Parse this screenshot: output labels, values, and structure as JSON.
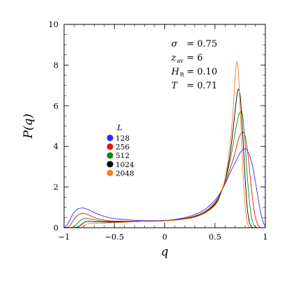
{
  "chart_data": {
    "type": "line",
    "xlabel": "q",
    "ylabel": "P(q)",
    "xlim": [
      -1,
      1
    ],
    "ylim": [
      0,
      10
    ],
    "xticks": [
      {
        "value": -1,
        "label": "−1"
      },
      {
        "value": -0.5,
        "label": "−0.5"
      },
      {
        "value": 0,
        "label": "0"
      },
      {
        "value": 0.5,
        "label": "0.5"
      },
      {
        "value": 1,
        "label": "1"
      }
    ],
    "yticks": [
      {
        "value": 0,
        "label": "0"
      },
      {
        "value": 2,
        "label": "2"
      },
      {
        "value": 4,
        "label": "4"
      },
      {
        "value": 6,
        "label": "6"
      },
      {
        "value": 8,
        "label": "8"
      },
      {
        "value": 10,
        "label": "10"
      }
    ],
    "grid": false,
    "legend": {
      "title": "L",
      "placement": "middle-left"
    },
    "annotations": [
      {
        "symbol": "σ",
        "sub": "",
        "value": "= 0.75"
      },
      {
        "symbol": "z",
        "sub": "av",
        "value": "= 6"
      },
      {
        "symbol": "H",
        "sub": "R",
        "value": "= 0.10"
      },
      {
        "symbol": "T",
        "sub": "",
        "value": "= 0.71"
      }
    ],
    "series": [
      {
        "name": "128",
        "color": "#2b2bff",
        "x": [
          -1.0,
          -0.98,
          -0.95,
          -0.92,
          -0.9,
          -0.87,
          -0.85,
          -0.82,
          -0.8,
          -0.78,
          -0.75,
          -0.7,
          -0.65,
          -0.6,
          -0.55,
          -0.5,
          -0.45,
          -0.4,
          -0.3,
          -0.2,
          -0.1,
          0.0,
          0.1,
          0.2,
          0.3,
          0.4,
          0.5,
          0.55,
          0.6,
          0.65,
          0.7,
          0.73,
          0.75,
          0.78,
          0.8,
          0.82,
          0.84,
          0.86,
          0.88,
          0.9,
          0.92,
          0.94,
          0.96,
          0.98,
          1.0
        ],
        "y": [
          0.0,
          0.08,
          0.3,
          0.6,
          0.75,
          0.9,
          0.95,
          0.97,
          0.96,
          0.93,
          0.87,
          0.75,
          0.64,
          0.56,
          0.49,
          0.45,
          0.42,
          0.4,
          0.37,
          0.35,
          0.35,
          0.36,
          0.41,
          0.5,
          0.65,
          0.9,
          1.35,
          1.7,
          2.15,
          2.7,
          3.2,
          3.5,
          3.7,
          3.85,
          3.9,
          3.8,
          3.6,
          3.3,
          2.85,
          2.3,
          1.7,
          1.1,
          0.6,
          0.25,
          0.05
        ]
      },
      {
        "name": "256",
        "color": "#ee1111",
        "x": [
          -1.0,
          -0.97,
          -0.94,
          -0.91,
          -0.88,
          -0.85,
          -0.82,
          -0.8,
          -0.77,
          -0.74,
          -0.7,
          -0.65,
          -0.6,
          -0.55,
          -0.5,
          -0.4,
          -0.3,
          -0.2,
          -0.1,
          0.0,
          0.1,
          0.2,
          0.3,
          0.4,
          0.5,
          0.55,
          0.6,
          0.65,
          0.7,
          0.72,
          0.74,
          0.76,
          0.78,
          0.8,
          0.82,
          0.84,
          0.86,
          0.88,
          0.9,
          0.92,
          0.94,
          0.96
        ],
        "y": [
          0.0,
          0.02,
          0.12,
          0.35,
          0.55,
          0.66,
          0.7,
          0.7,
          0.66,
          0.59,
          0.5,
          0.42,
          0.37,
          0.34,
          0.33,
          0.32,
          0.32,
          0.32,
          0.33,
          0.35,
          0.39,
          0.46,
          0.58,
          0.8,
          1.25,
          1.65,
          2.2,
          2.9,
          3.7,
          4.1,
          4.45,
          4.65,
          4.7,
          4.5,
          3.9,
          3.0,
          2.0,
          1.15,
          0.55,
          0.2,
          0.05,
          0.0
        ]
      },
      {
        "name": "512",
        "color": "#108a10",
        "x": [
          -1.0,
          -0.95,
          -0.9,
          -0.87,
          -0.84,
          -0.81,
          -0.78,
          -0.75,
          -0.7,
          -0.65,
          -0.6,
          -0.5,
          -0.4,
          -0.3,
          -0.2,
          -0.1,
          0.0,
          0.1,
          0.2,
          0.3,
          0.4,
          0.5,
          0.55,
          0.6,
          0.65,
          0.68,
          0.7,
          0.72,
          0.74,
          0.76,
          0.77,
          0.78,
          0.8,
          0.82,
          0.84,
          0.86,
          0.88,
          0.9,
          0.92
        ],
        "y": [
          0.0,
          0.0,
          0.06,
          0.2,
          0.36,
          0.44,
          0.46,
          0.44,
          0.39,
          0.35,
          0.32,
          0.3,
          0.3,
          0.3,
          0.31,
          0.32,
          0.34,
          0.38,
          0.44,
          0.55,
          0.76,
          1.2,
          1.65,
          2.3,
          3.3,
          4.1,
          4.7,
          5.2,
          5.6,
          5.72,
          5.65,
          5.3,
          4.1,
          2.6,
          1.4,
          0.6,
          0.2,
          0.05,
          0.0
        ]
      },
      {
        "name": "1024",
        "color": "#000000",
        "x": [
          -1.0,
          -0.9,
          -0.86,
          -0.83,
          -0.8,
          -0.77,
          -0.74,
          -0.7,
          -0.65,
          -0.6,
          -0.5,
          -0.4,
          -0.3,
          -0.2,
          -0.1,
          0.0,
          0.1,
          0.2,
          0.3,
          0.4,
          0.5,
          0.55,
          0.6,
          0.64,
          0.67,
          0.69,
          0.71,
          0.72,
          0.73,
          0.74,
          0.75,
          0.76,
          0.78,
          0.8,
          0.82,
          0.84,
          0.86,
          0.88
        ],
        "y": [
          0.0,
          0.0,
          0.04,
          0.15,
          0.26,
          0.31,
          0.31,
          0.3,
          0.29,
          0.28,
          0.28,
          0.29,
          0.3,
          0.31,
          0.32,
          0.34,
          0.37,
          0.43,
          0.54,
          0.74,
          1.15,
          1.6,
          2.35,
          3.3,
          4.4,
          5.3,
          6.2,
          6.6,
          6.8,
          6.75,
          6.5,
          5.9,
          4.2,
          2.4,
          1.0,
          0.3,
          0.06,
          0.0
        ]
      },
      {
        "name": "2048",
        "color": "#ff7a1a",
        "x": [
          -1.0,
          -0.85,
          -0.82,
          -0.79,
          -0.76,
          -0.73,
          -0.7,
          -0.65,
          -0.6,
          -0.5,
          -0.4,
          -0.3,
          -0.2,
          -0.1,
          0.0,
          0.1,
          0.2,
          0.3,
          0.4,
          0.5,
          0.55,
          0.6,
          0.63,
          0.66,
          0.68,
          0.69,
          0.7,
          0.71,
          0.72,
          0.73,
          0.74,
          0.75,
          0.77,
          0.79,
          0.81,
          0.83,
          0.85
        ],
        "y": [
          0.0,
          0.0,
          0.05,
          0.14,
          0.2,
          0.22,
          0.22,
          0.22,
          0.23,
          0.25,
          0.27,
          0.29,
          0.31,
          0.32,
          0.34,
          0.37,
          0.42,
          0.52,
          0.72,
          1.1,
          1.55,
          2.4,
          3.3,
          4.6,
          5.8,
          6.6,
          7.4,
          8.0,
          8.15,
          7.8,
          7.0,
          5.9,
          3.6,
          1.7,
          0.55,
          0.1,
          0.0
        ]
      }
    ]
  }
}
